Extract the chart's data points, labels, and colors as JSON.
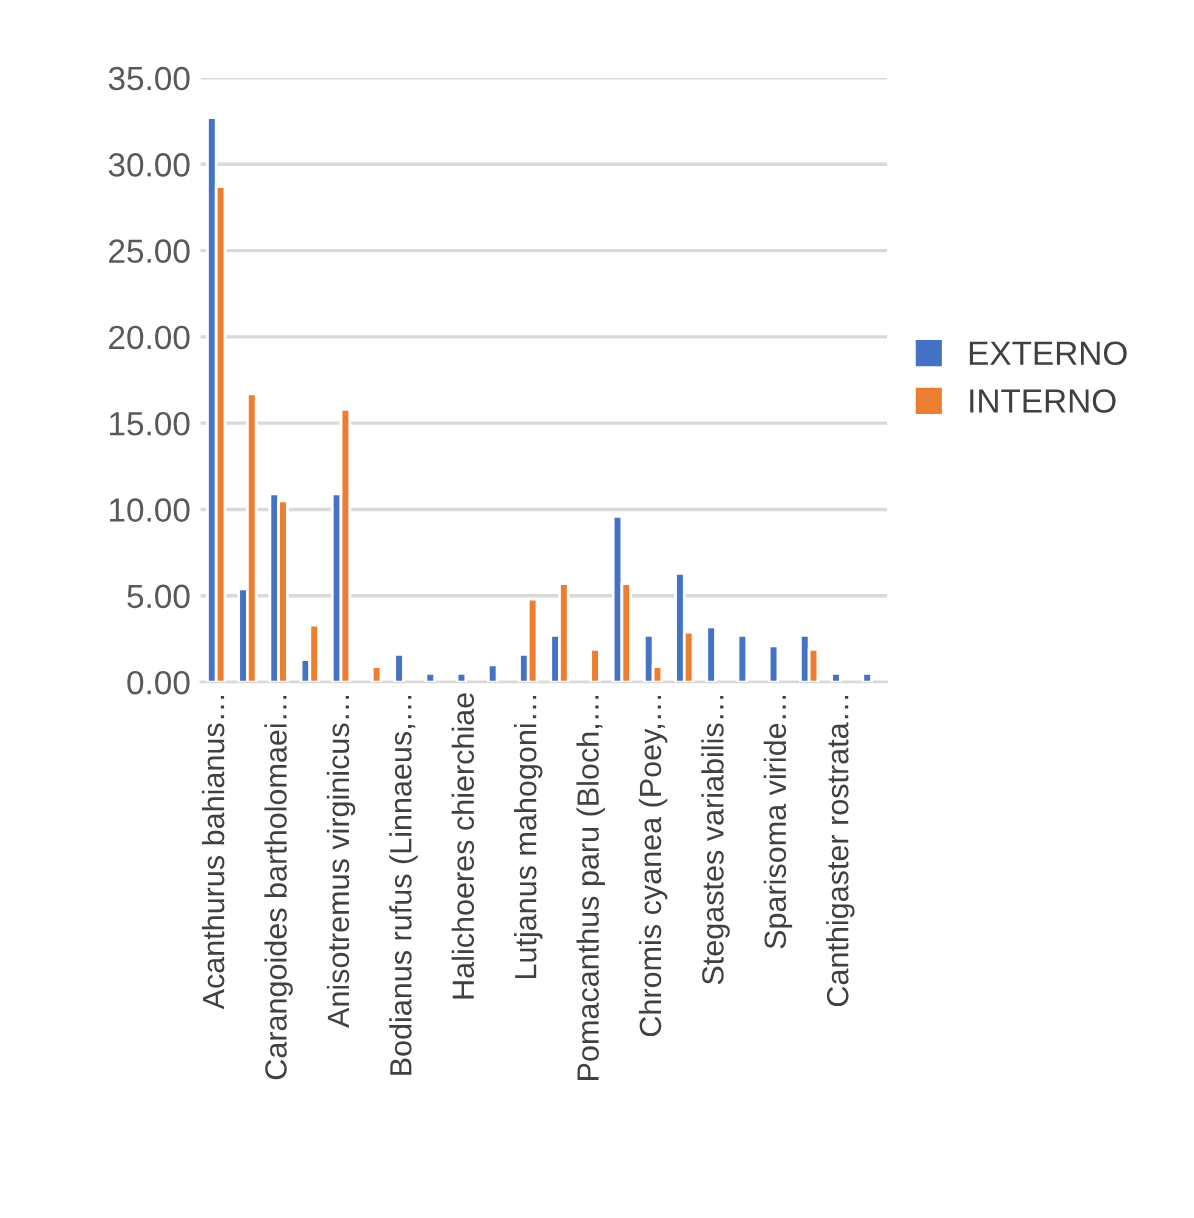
{
  "chart_data": {
    "type": "bar",
    "categories": [
      "Acanthurus bahianus…",
      null,
      "Carangoides bartholomaei…",
      null,
      "Anisotremus virginicus…",
      null,
      "Bodianus rufus (Linnaeus,…",
      null,
      "Halichoeres chierchiae",
      null,
      "Lutjanus mahogoni…",
      null,
      "Pomacanthus paru (Bloch,…",
      null,
      "Chromis cyanea (Poey,…",
      null,
      "Stegastes variabilis…",
      null,
      "Sparisoma viride…",
      null,
      "Canthigaster rostrata…",
      null
    ],
    "series": [
      {
        "name": "EXTERNO",
        "color": "#4472c4",
        "values": [
          32.7,
          5.4,
          10.9,
          1.3,
          10.9,
          null,
          1.6,
          0.5,
          0.5,
          1.0,
          1.6,
          2.7,
          null,
          9.6,
          2.7,
          6.3,
          3.2,
          2.7,
          2.1,
          2.7,
          0.5,
          0.5
        ]
      },
      {
        "name": "INTERNO",
        "color": "#ed7d31",
        "values": [
          28.7,
          16.7,
          10.5,
          3.3,
          15.8,
          0.9,
          null,
          null,
          null,
          null,
          4.8,
          5.7,
          1.9,
          5.7,
          0.9,
          2.9,
          null,
          null,
          null,
          1.9,
          null,
          null
        ]
      }
    ],
    "ylim": [
      0,
      35
    ],
    "yticks": [
      {
        "value": 0,
        "label": "0.00"
      },
      {
        "value": 5,
        "label": "5.00"
      },
      {
        "value": 10,
        "label": "10.00"
      },
      {
        "value": 15,
        "label": "15.00"
      },
      {
        "value": 20,
        "label": "20.00"
      },
      {
        "value": 25,
        "label": "25.00"
      },
      {
        "value": 30,
        "label": "30.00"
      },
      {
        "value": 35,
        "label": "35.00"
      }
    ],
    "grid": "y",
    "legend": "right"
  }
}
